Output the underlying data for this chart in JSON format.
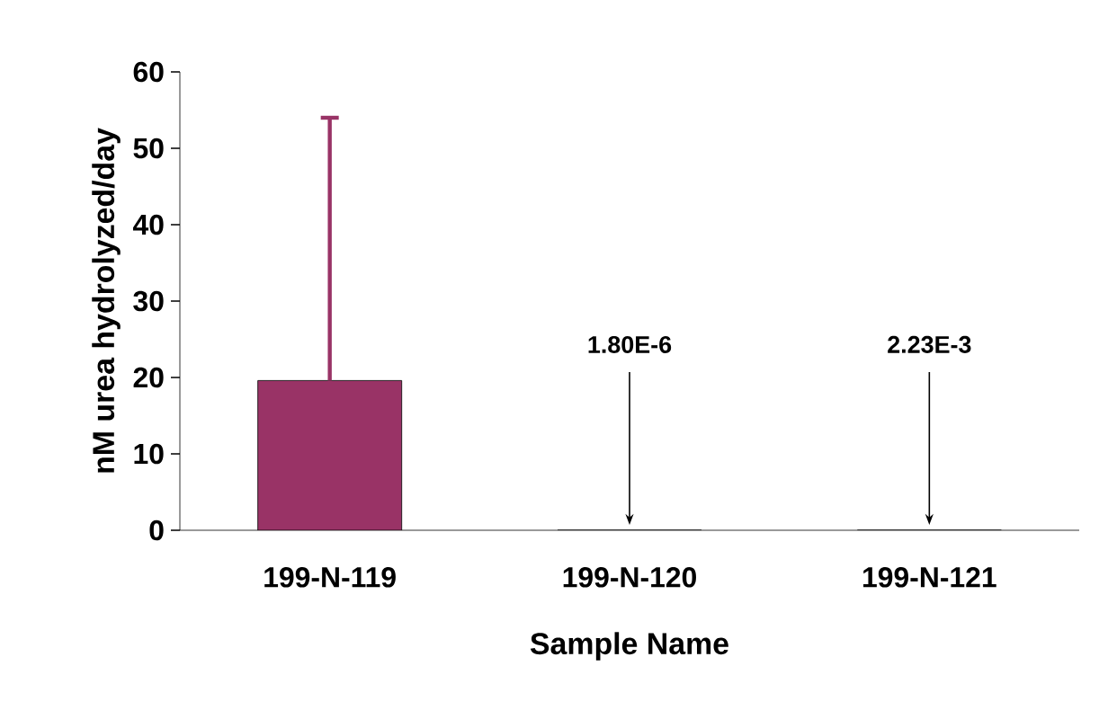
{
  "chart_data": {
    "type": "bar",
    "xlabel": "Sample Name",
    "ylabel": "nM urea hydrolyzed/day",
    "categories": [
      "199-N-119",
      "199-N-120",
      "199-N-121"
    ],
    "values": [
      19.6,
      1.8e-06,
      0.00223
    ],
    "errors": [
      [
        19.6,
        54
      ],
      null,
      null
    ],
    "value_labels": [
      null,
      "1.80E-6",
      "2.23E-3"
    ],
    "color": "#993366",
    "ylim": [
      0,
      60
    ],
    "yticks": [
      0,
      10,
      20,
      30,
      40,
      50,
      60
    ],
    "grid": false
  }
}
